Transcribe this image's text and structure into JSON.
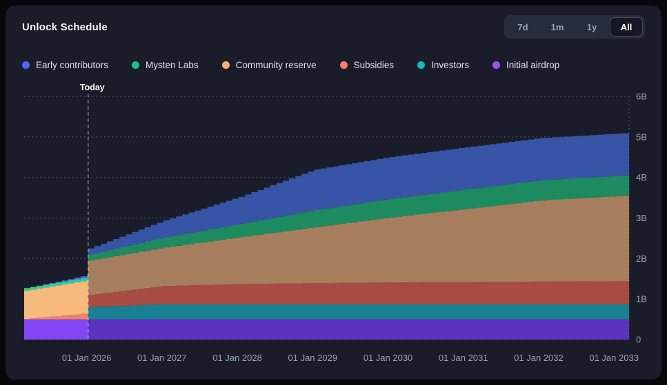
{
  "card": {
    "title": "Unlock Schedule"
  },
  "range_selector": {
    "options": [
      {
        "label": "7d",
        "active": false
      },
      {
        "label": "1m",
        "active": false
      },
      {
        "label": "1y",
        "active": false
      },
      {
        "label": "All",
        "active": true
      }
    ]
  },
  "legend": [
    {
      "label": "Early contributors",
      "color": "#4c68f0"
    },
    {
      "label": "Mysten Labs",
      "color": "#19c383"
    },
    {
      "label": "Community reserve",
      "color": "#f6b26f"
    },
    {
      "label": "Subsidies",
      "color": "#f87f66"
    },
    {
      "label": "Investors",
      "color": "#16b3c5"
    },
    {
      "label": "Initial airdrop",
      "color": "#a14ff6"
    }
  ],
  "chart_data": {
    "type": "area",
    "stacked": true,
    "title": "Unlock Schedule",
    "xlabel": "",
    "ylabel": "",
    "y_unit": "B",
    "x_range": [
      2025.17,
      2033.2
    ],
    "y_range": [
      0,
      6
    ],
    "grid": true,
    "legend_position": "top",
    "today_label": "Today",
    "today_x": 2026.02,
    "step_months": 1,
    "y_ticks": [
      {
        "v": 0,
        "label": "0"
      },
      {
        "v": 1,
        "label": "1B"
      },
      {
        "v": 2,
        "label": "2B"
      },
      {
        "v": 3,
        "label": "3B"
      },
      {
        "v": 4,
        "label": "4B"
      },
      {
        "v": 5,
        "label": "5B"
      },
      {
        "v": 6,
        "label": "6B"
      }
    ],
    "x_ticks": [
      {
        "v": 2026,
        "label": "01 Jan 2026"
      },
      {
        "v": 2027,
        "label": "01 Jan 2027"
      },
      {
        "v": 2028,
        "label": "01 Jan 2028"
      },
      {
        "v": 2029,
        "label": "01 Jan 2029"
      },
      {
        "v": 2030,
        "label": "01 Jan 2030"
      },
      {
        "v": 2031,
        "label": "01 Jan 2031"
      },
      {
        "v": 2032,
        "label": "01 Jan 2032"
      },
      {
        "v": 2033,
        "label": "01 Jan 2033"
      }
    ],
    "stack_order_bottom_to_top": [
      "Initial airdrop",
      "Investors",
      "Subsidies",
      "Community reserve",
      "Mysten Labs",
      "Early contributors"
    ],
    "sections": {
      "past": {
        "x": [
          2025.17,
          2025.6,
          2026.02
        ],
        "series": {
          "Initial airdrop": [
            0.5,
            0.5,
            0.5
          ],
          "Investors": [
            0.0,
            0.0,
            0.0
          ],
          "Subsidies": [
            0.01,
            0.08,
            0.15
          ],
          "Community reserve": [
            0.7,
            0.76,
            0.82
          ],
          "Mysten Labs": [
            0.06,
            0.07,
            0.08
          ],
          "Early contributors": [
            0.0,
            0.02,
            0.05
          ]
        },
        "colors": {
          "Initial airdrop": "#8447f6",
          "Investors": "#18b9cb",
          "Subsidies": "#f3806b",
          "Community reserve": "#f5ba7c",
          "Mysten Labs": "#2fcd96",
          "Early contributors": "#4b68ef"
        }
      },
      "future": {
        "x": [
          2026.02,
          2027,
          2028,
          2029,
          2030,
          2031,
          2032,
          2033.2
        ],
        "series": {
          "Initial airdrop": [
            0.5,
            0.5,
            0.5,
            0.5,
            0.5,
            0.5,
            0.5,
            0.5
          ],
          "Investors": [
            0.3,
            0.37,
            0.37,
            0.37,
            0.37,
            0.37,
            0.37,
            0.37
          ],
          "Subsidies": [
            0.3,
            0.45,
            0.5,
            0.52,
            0.54,
            0.55,
            0.56,
            0.57
          ],
          "Community reserve": [
            0.85,
            0.95,
            1.15,
            1.38,
            1.6,
            1.8,
            2.0,
            2.12
          ],
          "Mysten Labs": [
            0.15,
            0.25,
            0.33,
            0.42,
            0.46,
            0.48,
            0.5,
            0.5
          ],
          "Early contributors": [
            0.15,
            0.41,
            0.66,
            1.0,
            1.03,
            1.04,
            1.04,
            1.04
          ]
        },
        "colors": {
          "Initial airdrop": "#5b33bf",
          "Investors": "#197f92",
          "Subsidies": "#a84b43",
          "Community reserve": "#a67e5e",
          "Mysten Labs": "#1e8a60",
          "Early contributors": "#3854a6"
        }
      }
    }
  }
}
